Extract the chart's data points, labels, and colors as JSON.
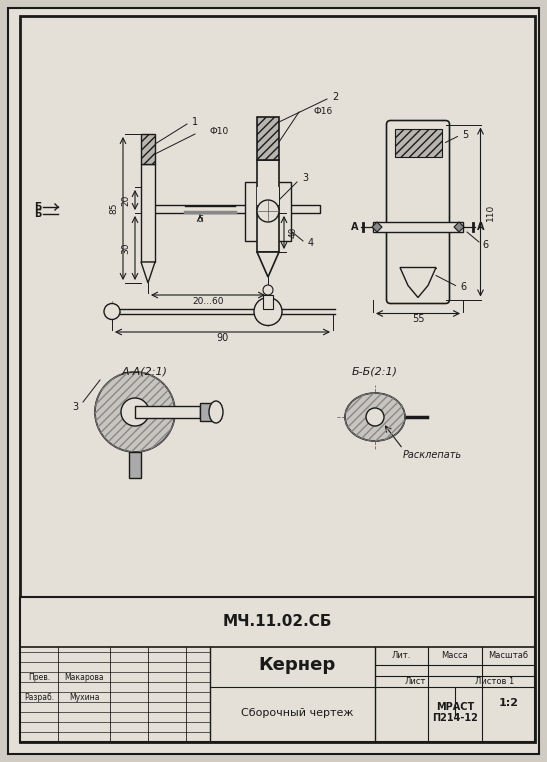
{
  "bg_color": "#d0ccc4",
  "paper_color": "#e4e0d8",
  "line_color": "#1a1a1a",
  "title_doc": "МЧ.11.02.СБ",
  "title_name": "Кернер",
  "title_subtitle": "Сборочный чертеж",
  "scale": "1:2",
  "author": "Мухина",
  "checker": "Макарова",
  "standard": "МРАСТ\nП214-12",
  "sheet": "Лист",
  "sheets": "Листов 1",
  "lit": "Лит.",
  "massa": "Масса",
  "masshtab": "Масштаб",
  "section_aa": "А-А(2:1)",
  "section_bb": "Б-Б(2:1)",
  "annotation": "Расклепать",
  "razrab": "Разраб.",
  "prov": "Прев.",
  "dim_phi10": "Ф10",
  "dim_phi16": "Ф16",
  "dim_85": "85",
  "dim_20": "20",
  "dim_30": "30",
  "dim_40": "40",
  "dim_2060": "20...60",
  "dim_90": "90",
  "dim_55": "55",
  "dim_110": "110",
  "fig_width": 5.47,
  "fig_height": 7.62
}
